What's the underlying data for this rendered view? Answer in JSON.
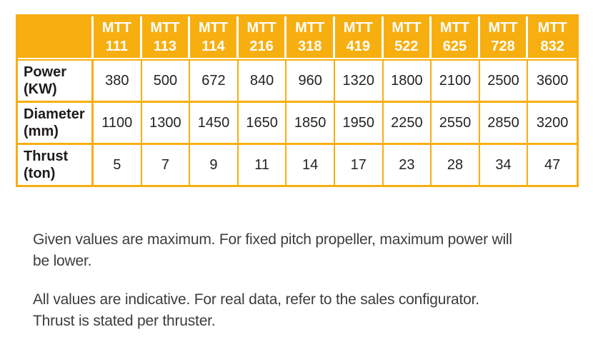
{
  "table": {
    "model_prefix": "MTT",
    "models": [
      "111",
      "113",
      "114",
      "216",
      "318",
      "419",
      "522",
      "625",
      "728",
      "832"
    ],
    "rows": [
      {
        "label": "Power",
        "unit": "(KW)",
        "values": [
          "380",
          "500",
          "672",
          "840",
          "960",
          "1320",
          "1800",
          "2100",
          "2500",
          "3600"
        ]
      },
      {
        "label": "Diameter",
        "unit": "(mm)",
        "values": [
          "1100",
          "1300",
          "1450",
          "1650",
          "1850",
          "1950",
          "2250",
          "2550",
          "2850",
          "3200"
        ]
      },
      {
        "label": "Thrust",
        "unit": "(ton)",
        "values": [
          "5",
          "7",
          "9",
          "11",
          "14",
          "17",
          "23",
          "28",
          "34",
          "47"
        ]
      }
    ],
    "colors": {
      "header_bg": "#F7AE0F",
      "header_text": "#FFFFFF",
      "grid": "#F7AE0F",
      "cell_text": "#262223"
    }
  },
  "notes": [
    {
      "lines": [
        "Given values are maximum. For fixed pitch propeller, maximum power will",
        "be lower."
      ]
    },
    {
      "lines": [
        "All values are indicative. For real data, refer to the sales configurator.",
        "Thrust is stated per thruster."
      ]
    }
  ]
}
